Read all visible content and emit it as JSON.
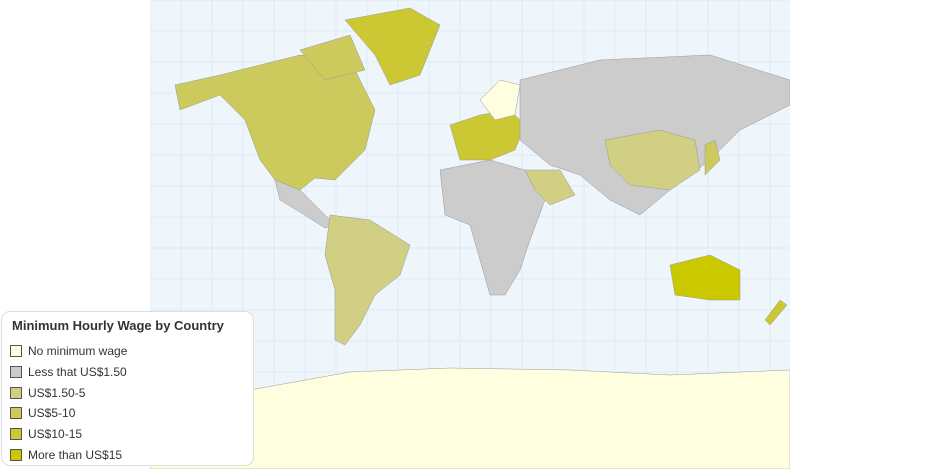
{
  "legend": {
    "title": "Minimum Hourly Wage by Country",
    "items": [
      {
        "label": "No minimum wage",
        "color": "#FFFFE0"
      },
      {
        "label": "Less that US$1.50",
        "color": "#CCCCCC"
      },
      {
        "label": "US$1.50-5",
        "color": "#D0CF84"
      },
      {
        "label": "US$5-10",
        "color": "#CCCA5C"
      },
      {
        "label": "US$10-15",
        "color": "#CCC833"
      },
      {
        "label": "More than US$15",
        "color": "#CCC800"
      }
    ]
  },
  "colors": {
    "ocean": "#EEF6FC",
    "grid": "#DCEAF6"
  }
}
